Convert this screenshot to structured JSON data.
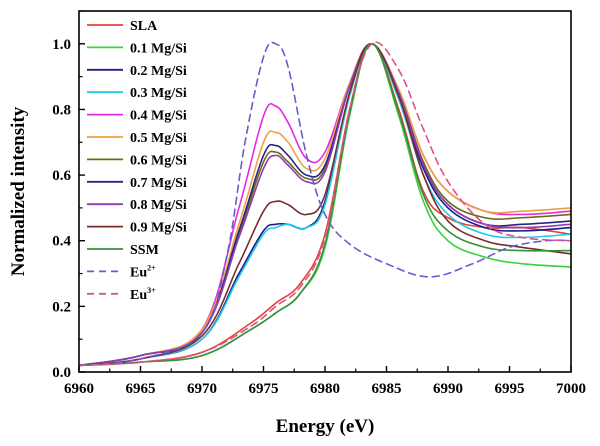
{
  "chart_data": {
    "type": "line",
    "xlabel": "Energy (eV)",
    "ylabel": "Normalized intensity",
    "xlim": [
      6960,
      7000
    ],
    "ylim": [
      0,
      1.1
    ],
    "x_ticks": [
      "6960",
      "6965",
      "6970",
      "6975",
      "6980",
      "6985",
      "6990",
      "6995",
      "7000"
    ],
    "y_ticks": [
      "0.0",
      "0.2",
      "0.4",
      "0.6",
      "0.8",
      "1.0"
    ],
    "legend_position": "top-left",
    "grid": false,
    "series": [
      {
        "name": "SLA",
        "color": "#e8413a",
        "dash": false,
        "x": [
          6960,
          6965,
          6970,
          6974,
          6976,
          6978,
          6980,
          6982,
          6983.8,
          6986,
          6988,
          6990,
          6993,
          6996,
          7000
        ],
        "y": [
          0.02,
          0.03,
          0.06,
          0.15,
          0.21,
          0.27,
          0.42,
          0.8,
          1.0,
          0.8,
          0.55,
          0.47,
          0.44,
          0.44,
          0.42
        ]
      },
      {
        "name": "0.1 Mg/Si",
        "color": "#3cd13c",
        "dash": false,
        "x": [
          6960,
          6965,
          6970,
          6974,
          6976,
          6978,
          6980,
          6982,
          6983.8,
          6986,
          6988,
          6990,
          6993,
          6996,
          7000
        ],
        "y": [
          0.02,
          0.03,
          0.05,
          0.13,
          0.18,
          0.24,
          0.38,
          0.78,
          1.0,
          0.78,
          0.52,
          0.4,
          0.35,
          0.33,
          0.32
        ]
      },
      {
        "name": "0.2 Mg/Si",
        "color": "#1c1c8a",
        "dash": false,
        "x": [
          6960,
          6965,
          6970,
          6973,
          6975,
          6976,
          6977,
          6978.5,
          6980,
          6982,
          6983.8,
          6986,
          6988,
          6990,
          6993,
          6996,
          7000
        ],
        "y": [
          0.02,
          0.04,
          0.1,
          0.3,
          0.43,
          0.45,
          0.45,
          0.44,
          0.52,
          0.85,
          1.0,
          0.84,
          0.62,
          0.5,
          0.44,
          0.43,
          0.44
        ]
      },
      {
        "name": "0.3 Mg/Si",
        "color": "#1fc9e8",
        "dash": false,
        "x": [
          6960,
          6965,
          6970,
          6973,
          6975,
          6976,
          6977,
          6978.5,
          6980,
          6982,
          6983.8,
          6986,
          6988,
          6990,
          6993,
          6996,
          7000
        ],
        "y": [
          0.02,
          0.04,
          0.1,
          0.29,
          0.42,
          0.44,
          0.45,
          0.44,
          0.51,
          0.84,
          1.0,
          0.83,
          0.6,
          0.48,
          0.42,
          0.41,
          0.42
        ]
      },
      {
        "name": "0.4 Mg/Si",
        "color": "#e52ae5",
        "dash": false,
        "x": [
          6960,
          6965,
          6970,
          6973,
          6975,
          6976,
          6977,
          6978.5,
          6980,
          6982,
          6983.8,
          6986,
          6988,
          6990,
          6993,
          6996,
          7000
        ],
        "y": [
          0.02,
          0.05,
          0.13,
          0.5,
          0.78,
          0.81,
          0.76,
          0.65,
          0.67,
          0.88,
          1.0,
          0.86,
          0.66,
          0.55,
          0.49,
          0.48,
          0.49
        ]
      },
      {
        "name": "0.5 Mg/Si",
        "color": "#f0a040",
        "dash": false,
        "x": [
          6960,
          6965,
          6970,
          6973,
          6975,
          6976,
          6977,
          6978.5,
          6980,
          6982,
          6983.8,
          6986,
          6988,
          6990,
          6993,
          6996,
          7000
        ],
        "y": [
          0.02,
          0.05,
          0.13,
          0.45,
          0.7,
          0.73,
          0.7,
          0.62,
          0.65,
          0.88,
          1.0,
          0.86,
          0.66,
          0.55,
          0.49,
          0.49,
          0.5
        ]
      },
      {
        "name": "0.6 Mg/Si",
        "color": "#6b6b10",
        "dash": false,
        "x": [
          6960,
          6965,
          6970,
          6973,
          6975,
          6976,
          6977,
          6978.5,
          6980,
          6982,
          6983.8,
          6986,
          6988,
          6990,
          6993,
          6996,
          7000
        ],
        "y": [
          0.02,
          0.05,
          0.12,
          0.42,
          0.64,
          0.67,
          0.64,
          0.59,
          0.62,
          0.87,
          1.0,
          0.85,
          0.64,
          0.52,
          0.47,
          0.47,
          0.48
        ]
      },
      {
        "name": "0.7 Mg/Si",
        "color": "#262680",
        "dash": false,
        "x": [
          6960,
          6965,
          6970,
          6973,
          6975,
          6976,
          6977,
          6978.5,
          6980,
          6982,
          6983.8,
          6986,
          6988,
          6990,
          6993,
          6996,
          7000
        ],
        "y": [
          0.02,
          0.05,
          0.12,
          0.43,
          0.66,
          0.69,
          0.66,
          0.6,
          0.63,
          0.87,
          1.0,
          0.85,
          0.63,
          0.51,
          0.45,
          0.45,
          0.46
        ]
      },
      {
        "name": "0.8 Mg/Si",
        "color": "#8e3cb8",
        "dash": false,
        "x": [
          6960,
          6965,
          6970,
          6973,
          6975,
          6976,
          6977,
          6978.5,
          6980,
          6982,
          6983.8,
          6986,
          6988,
          6990,
          6993,
          6996,
          7000
        ],
        "y": [
          0.02,
          0.05,
          0.12,
          0.41,
          0.62,
          0.66,
          0.63,
          0.58,
          0.61,
          0.87,
          1.0,
          0.85,
          0.63,
          0.51,
          0.45,
          0.44,
          0.45
        ]
      },
      {
        "name": "0.9 Mg/Si",
        "color": "#7a2c2c",
        "dash": false,
        "x": [
          6960,
          6965,
          6970,
          6973,
          6975,
          6976,
          6977,
          6978.5,
          6980,
          6982,
          6983.8,
          6986,
          6988,
          6990,
          6993,
          6996,
          7000
        ],
        "y": [
          0.02,
          0.04,
          0.11,
          0.33,
          0.49,
          0.52,
          0.51,
          0.48,
          0.54,
          0.85,
          1.0,
          0.84,
          0.6,
          0.46,
          0.4,
          0.38,
          0.36
        ]
      },
      {
        "name": "SSM",
        "color": "#3a8f3a",
        "dash": false,
        "x": [
          6960,
          6965,
          6970,
          6974,
          6976,
          6978,
          6980,
          6982,
          6983.8,
          6986,
          6988,
          6990,
          6993,
          6996,
          7000
        ],
        "y": [
          0.02,
          0.03,
          0.05,
          0.13,
          0.18,
          0.24,
          0.39,
          0.79,
          1.0,
          0.79,
          0.54,
          0.43,
          0.38,
          0.37,
          0.37
        ]
      },
      {
        "name": "Eu",
        "sup": "2+",
        "color": "#6a5acd",
        "dash": true,
        "x": [
          6960,
          6965,
          6970,
          6972,
          6973.5,
          6975,
          6976,
          6977,
          6978.5,
          6980,
          6982,
          6985,
          6988.5,
          6992,
          6995,
          6998,
          7000
        ],
        "y": [
          0.02,
          0.04,
          0.12,
          0.35,
          0.7,
          0.96,
          1.0,
          0.93,
          0.66,
          0.48,
          0.39,
          0.33,
          0.29,
          0.33,
          0.38,
          0.4,
          0.4
        ]
      },
      {
        "name": "Eu",
        "sup": "3+",
        "color": "#e0508a",
        "dash": true,
        "x": [
          6960,
          6965,
          6970,
          6974,
          6976,
          6978,
          6980,
          6982,
          6983.8,
          6986,
          6988,
          6990,
          6993,
          6996,
          7000
        ],
        "y": [
          0.02,
          0.03,
          0.06,
          0.14,
          0.2,
          0.26,
          0.41,
          0.8,
          1.0,
          0.92,
          0.74,
          0.58,
          0.45,
          0.41,
          0.4
        ]
      }
    ]
  }
}
